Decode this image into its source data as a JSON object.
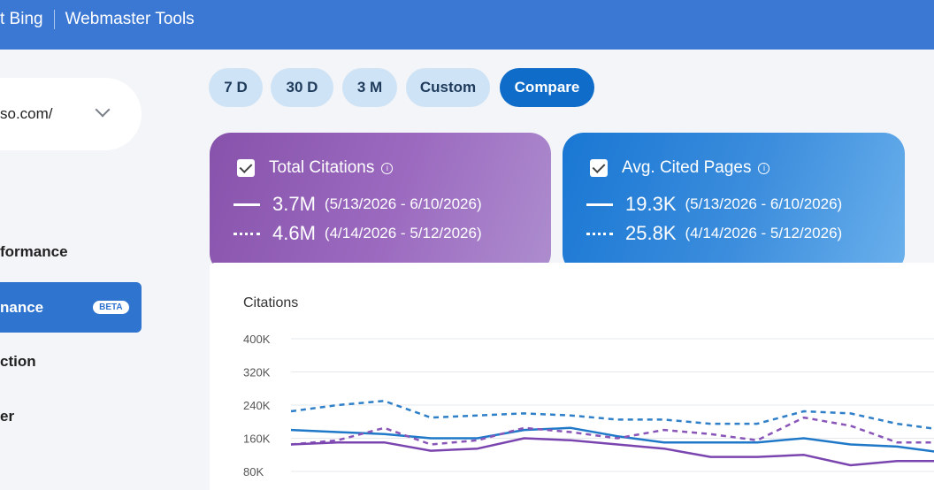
{
  "header": {
    "app_name": "t Bing",
    "product": "Webmaster Tools"
  },
  "site_selector": {
    "value": "so.com/"
  },
  "sidebar": {
    "items": [
      {
        "label": "formance"
      },
      {
        "label": "nance",
        "badge": "BETA",
        "active": true
      },
      {
        "label": "ction"
      },
      {
        "label": "er"
      }
    ]
  },
  "date_filters": [
    "7 D",
    "30 D",
    "3 M",
    "Custom",
    "Compare"
  ],
  "active_filter": "Compare",
  "metric_cards": [
    {
      "title": "Total Citations",
      "current_value": "3.7M",
      "current_range": "(5/13/2026 - 6/10/2026)",
      "previous_value": "4.6M",
      "previous_range": "(4/14/2026 - 5/12/2026)",
      "color": "#8752ab"
    },
    {
      "title": "Avg. Cited Pages",
      "current_value": "19.3K",
      "current_range": "(5/13/2026 - 6/10/2026)",
      "previous_value": "25.8K",
      "previous_range": "(4/14/2026 - 5/12/2026)",
      "color": "#1977d3"
    }
  ],
  "chart_data": {
    "type": "line",
    "title": "Citations",
    "y_ticks": [
      "400K",
      "320K",
      "240K",
      "160K",
      "80K"
    ],
    "ylim": [
      80000,
      400000
    ],
    "grid": true,
    "series": [
      {
        "color": "#2f80c8",
        "style": "dashed",
        "values": [
          225,
          240,
          250,
          210,
          215,
          220,
          215,
          205,
          205,
          195,
          195,
          225,
          220,
          195,
          180
        ]
      },
      {
        "color": "#1f78c8",
        "style": "solid",
        "values": [
          180,
          175,
          170,
          160,
          160,
          180,
          185,
          165,
          150,
          150,
          150,
          160,
          145,
          140,
          125
        ]
      },
      {
        "color": "#8a55b8",
        "style": "dashed",
        "values": [
          145,
          155,
          185,
          145,
          155,
          185,
          175,
          160,
          180,
          170,
          155,
          210,
          190,
          150,
          150
        ]
      },
      {
        "color": "#7b45b0",
        "style": "solid",
        "values": [
          145,
          150,
          150,
          130,
          135,
          160,
          155,
          145,
          135,
          115,
          115,
          120,
          95,
          105,
          105
        ]
      }
    ]
  }
}
